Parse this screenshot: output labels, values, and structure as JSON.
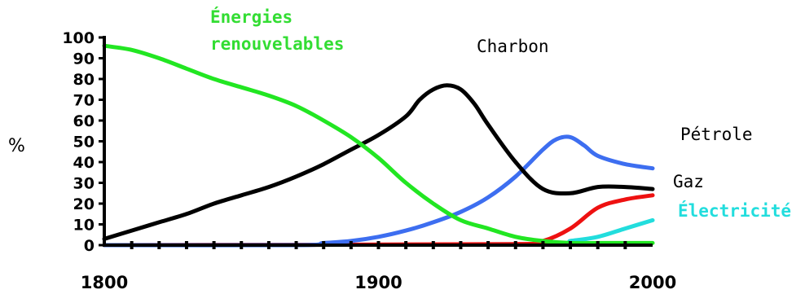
{
  "chart_data": {
    "type": "line",
    "title": "",
    "xlabel": "",
    "ylabel": "%",
    "xlim": [
      1800,
      2000
    ],
    "ylim": [
      0,
      100
    ],
    "x_ticks": [
      1800,
      1900,
      2000
    ],
    "y_ticks": [
      0,
      10,
      20,
      30,
      40,
      50,
      60,
      70,
      80,
      90,
      100
    ],
    "grid": false,
    "legend": "inline labels",
    "series": [
      {
        "name": "Énergies renouvelables",
        "name_lines": [
          "Énergies",
          "renouvelables"
        ],
        "color": "#22e622",
        "label_color": "#33dd33",
        "x": [
          1800,
          1810,
          1820,
          1830,
          1840,
          1850,
          1860,
          1870,
          1880,
          1890,
          1900,
          1910,
          1920,
          1930,
          1940,
          1950,
          1960,
          1970,
          1980,
          1990,
          2000
        ],
        "y": [
          96,
          94,
          90,
          85,
          80,
          76,
          72,
          67,
          60,
          52,
          42,
          30,
          20,
          12,
          8,
          4,
          2,
          1,
          1,
          1,
          1
        ]
      },
      {
        "name": "Charbon",
        "color": "#000000",
        "label_color": "#000000",
        "x": [
          1800,
          1810,
          1820,
          1830,
          1840,
          1850,
          1860,
          1870,
          1880,
          1890,
          1900,
          1910,
          1915,
          1920,
          1925,
          1930,
          1935,
          1940,
          1950,
          1960,
          1970,
          1980,
          1990,
          2000
        ],
        "y": [
          3,
          7,
          11,
          15,
          20,
          24,
          28,
          33,
          39,
          46,
          53,
          62,
          70,
          75,
          77,
          75,
          68,
          58,
          40,
          27,
          25,
          28,
          28,
          27
        ]
      },
      {
        "name": "Pétrole",
        "color": "#3d6ef0",
        "label_color": "#000000",
        "x": [
          1800,
          1870,
          1880,
          1890,
          1900,
          1910,
          1920,
          1930,
          1940,
          1950,
          1960,
          1965,
          1970,
          1975,
          1980,
          1990,
          2000
        ],
        "y": [
          0,
          0,
          1,
          2,
          4,
          7,
          11,
          16,
          23,
          33,
          46,
          51,
          52,
          48,
          43,
          39,
          37
        ]
      },
      {
        "name": "Gaz",
        "color": "#ee1111",
        "label_color": "#000000",
        "x": [
          1800,
          1950,
          1960,
          1970,
          1980,
          1990,
          2000
        ],
        "y": [
          0,
          0.5,
          2,
          8,
          18,
          22,
          24
        ]
      },
      {
        "name": "Électricité",
        "color": "#22dddd",
        "label_color": "#22dddd",
        "x": [
          1800,
          1960,
          1970,
          1980,
          1990,
          2000
        ],
        "y": [
          0,
          0.5,
          2,
          4,
          8,
          12
        ]
      }
    ]
  }
}
